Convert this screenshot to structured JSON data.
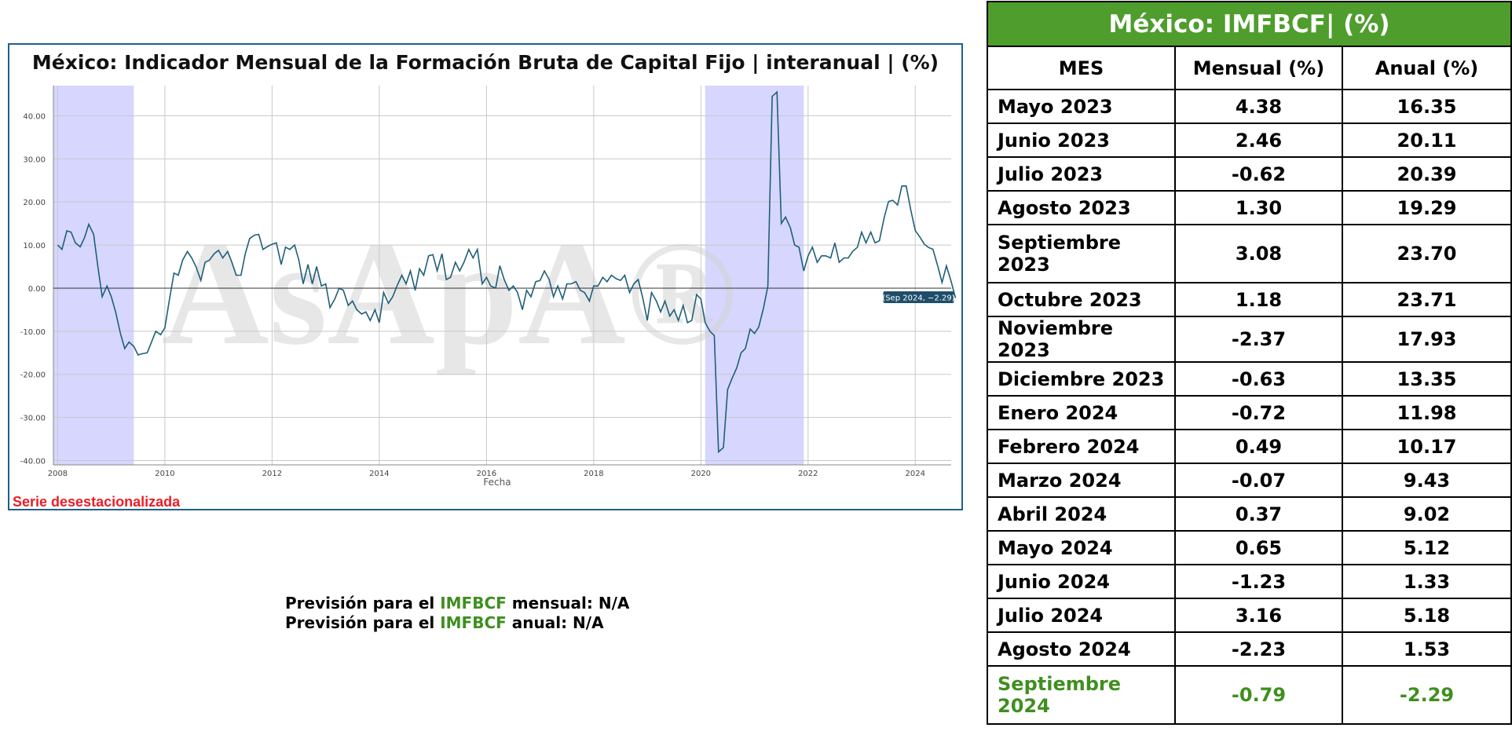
{
  "chart": {
    "title": "México: Indicador Mensual de la Formación Bruta de Capital Fijo | interanual | (%)",
    "note": "Serie desestacionalizada",
    "watermark": "AsApA®"
  },
  "chart_data": {
    "type": "line",
    "xlabel": "Fecha",
    "ylabel": "",
    "ylim": [
      -41,
      47
    ],
    "xlim": [
      2007.92,
      2024.67
    ],
    "x_ticks": [
      "2008",
      "2010",
      "2012",
      "2014",
      "2016",
      "2018",
      "2020",
      "2022",
      "2024"
    ],
    "y_ticks": [
      "40.00",
      "30.00",
      "20.00",
      "10.00",
      "0.00",
      "-10.00",
      "-20.00",
      "-30.00",
      "-40.00"
    ],
    "shaded_periods": [
      [
        2007.92,
        2009.42
      ],
      [
        2020.08,
        2021.92
      ]
    ],
    "annotation": "(Sep 2024, −2.29)",
    "series": [
      {
        "color": "#1f5f7a",
        "points": [
          [
            2008.0,
            10.0
          ],
          [
            2008.08,
            9.0
          ],
          [
            2008.17,
            13.3
          ],
          [
            2008.25,
            13.0
          ],
          [
            2008.33,
            10.5
          ],
          [
            2008.42,
            9.6
          ],
          [
            2008.5,
            11.7
          ],
          [
            2008.58,
            14.8
          ],
          [
            2008.67,
            12.5
          ],
          [
            2008.75,
            5.0
          ],
          [
            2008.83,
            -2.0
          ],
          [
            2008.92,
            0.5
          ],
          [
            2009.0,
            -2.0
          ],
          [
            2009.08,
            -5.5
          ],
          [
            2009.17,
            -10.5
          ],
          [
            2009.25,
            -14.0
          ],
          [
            2009.33,
            -12.5
          ],
          [
            2009.42,
            -13.5
          ],
          [
            2009.5,
            -15.5
          ],
          [
            2009.58,
            -15.2
          ],
          [
            2009.67,
            -15.0
          ],
          [
            2009.75,
            -12.5
          ],
          [
            2009.83,
            -10.0
          ],
          [
            2009.92,
            -10.8
          ],
          [
            2010.0,
            -9.2
          ],
          [
            2010.08,
            -3.0
          ],
          [
            2010.17,
            3.5
          ],
          [
            2010.25,
            3.0
          ],
          [
            2010.33,
            6.5
          ],
          [
            2010.42,
            8.5
          ],
          [
            2010.5,
            7.0
          ],
          [
            2010.58,
            5.0
          ],
          [
            2010.67,
            1.8
          ],
          [
            2010.75,
            6.0
          ],
          [
            2010.83,
            6.5
          ],
          [
            2010.92,
            8.0
          ],
          [
            2011.0,
            8.8
          ],
          [
            2011.08,
            7.0
          ],
          [
            2011.17,
            8.5
          ],
          [
            2011.25,
            6.0
          ],
          [
            2011.33,
            3.0
          ],
          [
            2011.42,
            3.0
          ],
          [
            2011.5,
            8.0
          ],
          [
            2011.58,
            11.5
          ],
          [
            2011.67,
            12.3
          ],
          [
            2011.75,
            12.5
          ],
          [
            2011.83,
            9.0
          ],
          [
            2011.92,
            9.7
          ],
          [
            2012.0,
            10.2
          ],
          [
            2012.08,
            10.5
          ],
          [
            2012.17,
            5.5
          ],
          [
            2012.25,
            9.5
          ],
          [
            2012.33,
            9.0
          ],
          [
            2012.42,
            10.0
          ],
          [
            2012.5,
            6.5
          ],
          [
            2012.58,
            1.0
          ],
          [
            2012.67,
            5.5
          ],
          [
            2012.75,
            1.0
          ],
          [
            2012.83,
            5.0
          ],
          [
            2012.92,
            0.5
          ],
          [
            2013.0,
            1.0
          ],
          [
            2013.08,
            -4.5
          ],
          [
            2013.17,
            -2.5
          ],
          [
            2013.25,
            0.0
          ],
          [
            2013.33,
            -0.5
          ],
          [
            2013.42,
            -4.0
          ],
          [
            2013.5,
            -3.0
          ],
          [
            2013.58,
            -5.0
          ],
          [
            2013.67,
            -6.0
          ],
          [
            2013.75,
            -5.5
          ],
          [
            2013.83,
            -7.5
          ],
          [
            2013.92,
            -5.0
          ],
          [
            2014.0,
            -8.0
          ],
          [
            2014.08,
            -1.0
          ],
          [
            2014.17,
            -3.5
          ],
          [
            2014.25,
            -2.0
          ],
          [
            2014.33,
            0.5
          ],
          [
            2014.42,
            3.0
          ],
          [
            2014.5,
            1.0
          ],
          [
            2014.58,
            4.0
          ],
          [
            2014.67,
            -0.5
          ],
          [
            2014.75,
            4.5
          ],
          [
            2014.83,
            3.0
          ],
          [
            2014.92,
            7.5
          ],
          [
            2015.0,
            7.8
          ],
          [
            2015.08,
            4.0
          ],
          [
            2015.17,
            8.0
          ],
          [
            2015.25,
            2.0
          ],
          [
            2015.33,
            2.5
          ],
          [
            2015.42,
            6.0
          ],
          [
            2015.5,
            4.0
          ],
          [
            2015.58,
            6.0
          ],
          [
            2015.67,
            9.0
          ],
          [
            2015.75,
            7.0
          ],
          [
            2015.83,
            9.0
          ],
          [
            2015.92,
            1.0
          ],
          [
            2016.0,
            2.5
          ],
          [
            2016.08,
            0.5
          ],
          [
            2016.17,
            0.0
          ],
          [
            2016.25,
            5.2
          ],
          [
            2016.33,
            2.0
          ],
          [
            2016.42,
            -0.5
          ],
          [
            2016.5,
            0.5
          ],
          [
            2016.58,
            -1.0
          ],
          [
            2016.67,
            -5.0
          ],
          [
            2016.75,
            -0.5
          ],
          [
            2016.83,
            -2.0
          ],
          [
            2016.92,
            1.5
          ],
          [
            2017.0,
            1.8
          ],
          [
            2017.08,
            4.0
          ],
          [
            2017.17,
            2.0
          ],
          [
            2017.25,
            -2.0
          ],
          [
            2017.33,
            0.5
          ],
          [
            2017.42,
            -2.5
          ],
          [
            2017.5,
            1.0
          ],
          [
            2017.58,
            1.0
          ],
          [
            2017.67,
            1.5
          ],
          [
            2017.75,
            -0.5
          ],
          [
            2017.83,
            -1.0
          ],
          [
            2017.92,
            -3.0
          ],
          [
            2018.0,
            0.5
          ],
          [
            2018.08,
            0.5
          ],
          [
            2018.17,
            2.5
          ],
          [
            2018.25,
            1.5
          ],
          [
            2018.33,
            3.0
          ],
          [
            2018.42,
            2.2
          ],
          [
            2018.5,
            1.8
          ],
          [
            2018.58,
            3.0
          ],
          [
            2018.67,
            -1.0
          ],
          [
            2018.75,
            1.0
          ],
          [
            2018.83,
            2.0
          ],
          [
            2018.92,
            -2.5
          ],
          [
            2019.0,
            -7.5
          ],
          [
            2019.08,
            -1.0
          ],
          [
            2019.17,
            -3.0
          ],
          [
            2019.25,
            -5.5
          ],
          [
            2019.33,
            -3.0
          ],
          [
            2019.42,
            -6.5
          ],
          [
            2019.5,
            -5.0
          ],
          [
            2019.58,
            -7.5
          ],
          [
            2019.67,
            -4.0
          ],
          [
            2019.75,
            -8.0
          ],
          [
            2019.83,
            -7.5
          ],
          [
            2019.92,
            -1.5
          ],
          [
            2020.0,
            -2.5
          ],
          [
            2020.08,
            -8.0
          ],
          [
            2020.17,
            -10.0
          ],
          [
            2020.25,
            -11.0
          ],
          [
            2020.33,
            -38.0
          ],
          [
            2020.42,
            -37.0
          ],
          [
            2020.5,
            -23.5
          ],
          [
            2020.58,
            -21.0
          ],
          [
            2020.67,
            -18.5
          ],
          [
            2020.75,
            -15.0
          ],
          [
            2020.83,
            -14.0
          ],
          [
            2020.92,
            -9.5
          ],
          [
            2021.0,
            -10.5
          ],
          [
            2021.08,
            -9.0
          ],
          [
            2021.17,
            -4.5
          ],
          [
            2021.25,
            0.5
          ],
          [
            2021.33,
            44.5
          ],
          [
            2021.42,
            45.5
          ],
          [
            2021.5,
            15.0
          ],
          [
            2021.58,
            16.5
          ],
          [
            2021.67,
            14.0
          ],
          [
            2021.75,
            10.0
          ],
          [
            2021.83,
            9.5
          ],
          [
            2021.92,
            4.0
          ],
          [
            2022.0,
            7.5
          ],
          [
            2022.08,
            9.5
          ],
          [
            2022.17,
            6.0
          ],
          [
            2022.25,
            7.5
          ],
          [
            2022.33,
            7.5
          ],
          [
            2022.42,
            7.0
          ],
          [
            2022.5,
            10.5
          ],
          [
            2022.58,
            6.0
          ],
          [
            2022.67,
            7.0
          ],
          [
            2022.75,
            7.0
          ],
          [
            2022.83,
            8.5
          ],
          [
            2022.92,
            9.5
          ],
          [
            2023.0,
            13.0
          ],
          [
            2023.08,
            10.5
          ],
          [
            2023.17,
            13.0
          ],
          [
            2023.25,
            10.5
          ],
          [
            2023.33,
            11.0
          ],
          [
            2023.42,
            16.35
          ],
          [
            2023.5,
            20.11
          ],
          [
            2023.58,
            20.39
          ],
          [
            2023.67,
            19.29
          ],
          [
            2023.75,
            23.7
          ],
          [
            2023.83,
            23.71
          ],
          [
            2023.92,
            17.93
          ],
          [
            2024.0,
            13.35
          ],
          [
            2024.08,
            11.98
          ],
          [
            2024.17,
            10.17
          ],
          [
            2024.25,
            9.43
          ],
          [
            2024.33,
            9.02
          ],
          [
            2024.42,
            5.12
          ],
          [
            2024.5,
            1.33
          ],
          [
            2024.58,
            5.18
          ],
          [
            2024.67,
            1.53
          ],
          [
            2024.75,
            -2.29
          ]
        ]
      }
    ]
  },
  "forecast": {
    "line1_pre": "Previsión para el ",
    "line1_kw": "IMFBCF",
    "line1_post": " mensual: N/A",
    "line2_pre": "Previsión para el ",
    "line2_kw": "IMFBCF",
    "line2_post": " anual: N/A"
  },
  "table": {
    "title": "México: IMFBCF| (%)",
    "headers": [
      "MES",
      "Mensual (%)",
      "Anual (%)"
    ],
    "rows": [
      {
        "mes": "Mayo 2023",
        "mensual": "4.38",
        "anual": "16.35"
      },
      {
        "mes": "Junio 2023",
        "mensual": "2.46",
        "anual": "20.11"
      },
      {
        "mes": "Julio 2023",
        "mensual": "-0.62",
        "anual": "20.39"
      },
      {
        "mes": "Agosto 2023",
        "mensual": "1.30",
        "anual": "19.29"
      },
      {
        "mes": "Septiembre 2023",
        "mensual": "3.08",
        "anual": "23.70"
      },
      {
        "mes": "Octubre 2023",
        "mensual": "1.18",
        "anual": "23.71"
      },
      {
        "mes": "Noviembre 2023",
        "mensual": "-2.37",
        "anual": "17.93"
      },
      {
        "mes": "Diciembre 2023",
        "mensual": "-0.63",
        "anual": "13.35"
      },
      {
        "mes": "Enero 2024",
        "mensual": "-0.72",
        "anual": "11.98"
      },
      {
        "mes": "Febrero 2024",
        "mensual": "0.49",
        "anual": "10.17"
      },
      {
        "mes": "Marzo 2024",
        "mensual": "-0.07",
        "anual": "9.43"
      },
      {
        "mes": "Abril 2024",
        "mensual": "0.37",
        "anual": "9.02"
      },
      {
        "mes": "Mayo 2024",
        "mensual": "0.65",
        "anual": "5.12"
      },
      {
        "mes": "Junio 2024",
        "mensual": "-1.23",
        "anual": "1.33"
      },
      {
        "mes": "Julio 2024",
        "mensual": "3.16",
        "anual": "5.18"
      },
      {
        "mes": "Agosto 2024",
        "mensual": "-2.23",
        "anual": "1.53"
      },
      {
        "mes": "Septiembre 2024",
        "mensual": "-0.79",
        "anual": "-2.29"
      }
    ]
  },
  "colors": {
    "table_header_bg": "#4e9d2d",
    "highlight_green": "#3f8f1f",
    "note_red": "#ee1c25",
    "shade": "#d6d6ff",
    "line": "#1f5f7a"
  }
}
